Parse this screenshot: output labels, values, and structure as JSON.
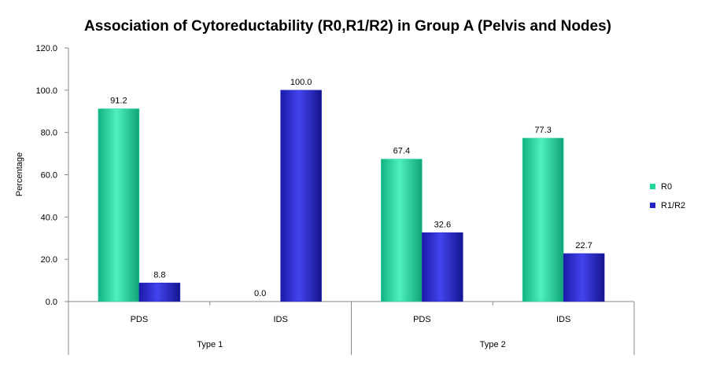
{
  "chart_data": {
    "type": "bar",
    "title": "Association of Cytoreductability (R0,R1/R2) in Group A (Pelvis and Nodes)",
    "xlabel": "",
    "ylabel": "Percentage",
    "ylim": [
      0,
      120
    ],
    "yticks": [
      "0.0",
      "20.0",
      "40.0",
      "60.0",
      "80.0",
      "100.0",
      "120.0"
    ],
    "categories": [
      "PDS",
      "IDS",
      "PDS",
      "IDS"
    ],
    "groups": [
      {
        "label": "Type 1",
        "span": 2
      },
      {
        "label": "Type 2",
        "span": 2
      }
    ],
    "series": [
      {
        "name": "R0",
        "values": [
          91.2,
          0.0,
          67.4,
          77.3
        ],
        "labels": [
          "91.2",
          "0.0",
          "67.4",
          "77.3"
        ],
        "color": "#1fd69a"
      },
      {
        "name": "R1/R2",
        "values": [
          8.8,
          100.0,
          32.6,
          22.7
        ],
        "labels": [
          "8.8",
          "100.0",
          "32.6",
          "22.7"
        ],
        "color": "#2424c8"
      }
    ],
    "grid": false,
    "legend_position": "right"
  }
}
